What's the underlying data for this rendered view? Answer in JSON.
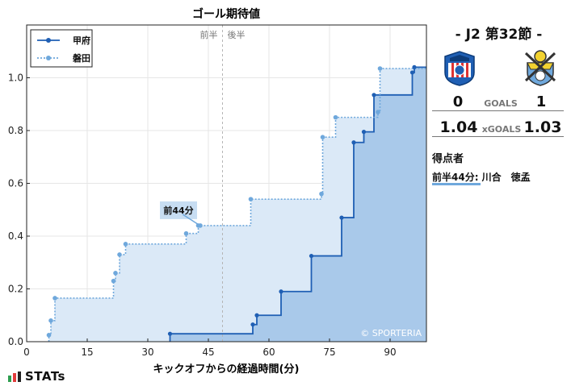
{
  "chart_data": {
    "type": "line",
    "title": "ゴール期待値",
    "xlabel": "キックオフからの経過時間(分)",
    "ylabel": "",
    "xlim": [
      0,
      99
    ],
    "ylim": [
      0,
      1.2
    ],
    "x_ticks": [
      0,
      15,
      30,
      45,
      60,
      75,
      90
    ],
    "y_ticks": [
      0.0,
      0.2,
      0.4,
      0.6,
      0.8,
      1.0
    ],
    "grid": true,
    "halftime_marker": 48.5,
    "period_labels": [
      "前半",
      "後半"
    ],
    "legend_position": "top-left",
    "watermark": "© SPORTERIA",
    "series": [
      {
        "name": "甲府",
        "color": "#1f5fb4",
        "fill": "#a9c9ea",
        "style": "solid",
        "x": [
          35.5,
          56,
          57,
          63,
          70.5,
          78,
          81,
          83.5,
          86,
          95.5,
          96,
          99
        ],
        "y": [
          0.03,
          0.065,
          0.1,
          0.19,
          0.325,
          0.47,
          0.755,
          0.795,
          0.935,
          1.02,
          1.04,
          1.04
        ]
      },
      {
        "name": "磐田",
        "color": "#6fa8dc",
        "fill": "#dbe9f7",
        "style": "dotted",
        "x": [
          5.5,
          6,
          7,
          21.5,
          22,
          23,
          24.5,
          39.5,
          42.5,
          43,
          55.5,
          73,
          73.3,
          76.5,
          87,
          87.5,
          99
        ],
        "y": [
          0.025,
          0.08,
          0.165,
          0.23,
          0.26,
          0.33,
          0.37,
          0.41,
          0.44,
          0.44,
          0.54,
          0.56,
          0.775,
          0.85,
          0.87,
          1.035,
          1.035
        ]
      }
    ],
    "annotations": [
      {
        "text": "前44分",
        "x": 43,
        "y": 0.44
      }
    ]
  },
  "panel": {
    "match_title": "- J2 第32節 -",
    "home_goals": "0",
    "away_goals": "1",
    "goals_label": "GOALS",
    "home_xg": "1.04",
    "away_xg": "1.03",
    "xg_label": "xGOALS",
    "scorers_heading": "得点者",
    "scorers": [
      "前半44分: 川合　徳孟"
    ]
  },
  "brand": {
    "name": "STATs"
  }
}
